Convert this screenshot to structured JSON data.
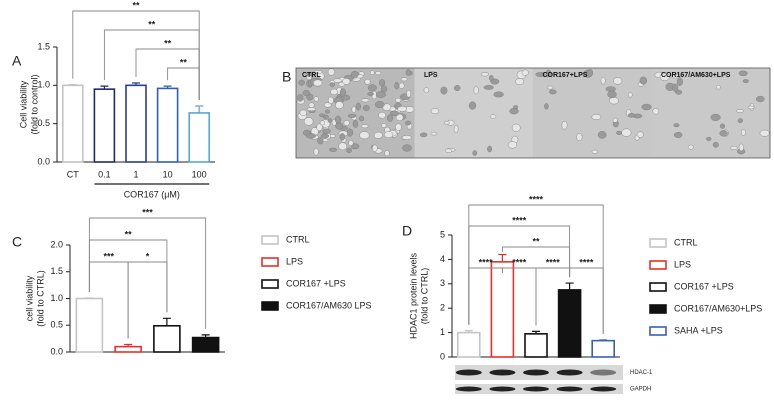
{
  "chart_data": [
    {
      "type": "bar",
      "panel_label": "A",
      "ylabel": [
        "Cell viability",
        "(fold to control)"
      ],
      "categories": [
        "CT",
        "0.1",
        "1",
        "10",
        "100"
      ],
      "values": [
        1.0,
        0.95,
        1.0,
        0.96,
        0.64
      ],
      "errors": [
        0.01,
        0.04,
        0.03,
        0.03,
        0.09
      ],
      "colors": [
        "#c4c4c4",
        "#1f2a6e",
        "#24408f",
        "#2f5fb0",
        "#5aa6d6"
      ],
      "xgroup_label": "COR167 (μM)",
      "ylim": [
        0,
        1.5
      ],
      "yticks": [
        {
          "value": 0,
          "label": "0.0"
        },
        {
          "value": 0.5,
          "label": "0.5"
        },
        {
          "value": 1,
          "label": "1.0"
        },
        {
          "value": 1.5,
          "label": "1.5"
        }
      ],
      "significance": [
        {
          "label": "**",
          "between": [
            "CT",
            "100"
          ]
        },
        {
          "label": "**",
          "between": [
            "0.1",
            "100"
          ]
        },
        {
          "label": "**",
          "between": [
            "1",
            "100"
          ]
        },
        {
          "label": "**",
          "between": [
            "10",
            "100"
          ]
        }
      ]
    },
    {
      "type": "bar",
      "panel_label": "C",
      "ylabel": [
        "cell viability",
        "(fold to CTRL)"
      ],
      "series": [
        {
          "name": "CTRL",
          "color": "#c4c4c4",
          "fill": "#ffffff",
          "values": [
            1.0
          ],
          "errors": [
            0.01
          ]
        },
        {
          "name": "LPS",
          "color": "#e8302a",
          "fill": "#ffffff",
          "values": [
            0.1
          ],
          "errors": [
            0.04
          ]
        },
        {
          "name": "COR167 +LPS",
          "color": "#111111",
          "fill": "#ffffff",
          "values": [
            0.49
          ],
          "errors": [
            0.14
          ]
        },
        {
          "name": "COR167/AM630 LPS",
          "color": "#111111",
          "fill": "#111111",
          "values": [
            0.27
          ],
          "errors": [
            0.05
          ]
        }
      ],
      "ylim": [
        0,
        2
      ],
      "yticks": [
        {
          "value": 0,
          "label": "0.0"
        },
        {
          "value": 0.5,
          "label": "0.5"
        },
        {
          "value": 1,
          "label": "1.0"
        },
        {
          "value": 1.5,
          "label": "1.5"
        },
        {
          "value": 2,
          "label": "2.0"
        }
      ],
      "significance": [
        {
          "label": "***",
          "between": [
            "CTRL",
            "COR167/AM630 LPS"
          ]
        },
        {
          "label": "**",
          "between": [
            "CTRL",
            "COR167 +LPS"
          ]
        },
        {
          "label": "***",
          "between": [
            "CTRL",
            "LPS"
          ]
        },
        {
          "label": "*",
          "between": [
            "LPS",
            "COR167 +LPS"
          ]
        }
      ]
    },
    {
      "type": "bar",
      "panel_label": "D",
      "ylabel": [
        "HDAC1 protein levels",
        "(fold to CTRL)"
      ],
      "series": [
        {
          "name": "CTRL",
          "color": "#c4c4c4",
          "fill": "#ffffff",
          "values": [
            1.0
          ],
          "errors": [
            0.08
          ]
        },
        {
          "name": "LPS",
          "color": "#e8302a",
          "fill": "#ffffff",
          "values": [
            3.9
          ],
          "errors": [
            0.3
          ]
        },
        {
          "name": "COR167 +LPS",
          "color": "#111111",
          "fill": "#ffffff",
          "values": [
            0.95
          ],
          "errors": [
            0.1
          ]
        },
        {
          "name": "COR167/AM630+LPS",
          "color": "#111111",
          "fill": "#111111",
          "values": [
            2.75
          ],
          "errors": [
            0.28
          ]
        },
        {
          "name": "SAHA +LPS",
          "color": "#3a5fb5",
          "fill": "#ffffff",
          "values": [
            0.67
          ],
          "errors": [
            0.03
          ]
        }
      ],
      "ylim": [
        0,
        5
      ],
      "yticks": [
        0,
        1,
        2,
        3,
        4,
        5
      ],
      "significance": [
        {
          "label": "****",
          "between": [
            "CTRL",
            "SAHA +LPS"
          ]
        },
        {
          "label": "****",
          "between": [
            "CTRL",
            "COR167/AM630+LPS"
          ]
        },
        {
          "label": "**",
          "between": [
            "LPS",
            "COR167/AM630+LPS"
          ]
        },
        {
          "label": "****",
          "between": [
            "CTRL",
            "LPS"
          ]
        },
        {
          "label": "****",
          "between": [
            "LPS",
            "COR167 +LPS"
          ]
        },
        {
          "label": "****",
          "between": [
            "COR167 +LPS",
            "COR167/AM630+LPS"
          ]
        },
        {
          "label": "****",
          "between": [
            "COR167/AM630+LPS",
            "SAHA +LPS"
          ]
        }
      ],
      "blot_labels": [
        "HDAC-1",
        "GAPDH"
      ]
    }
  ],
  "image_panel": {
    "label": "B",
    "captions": [
      "CTRL",
      "LPS",
      "COR167+LPS",
      "COR167/AM630+LPS"
    ]
  }
}
